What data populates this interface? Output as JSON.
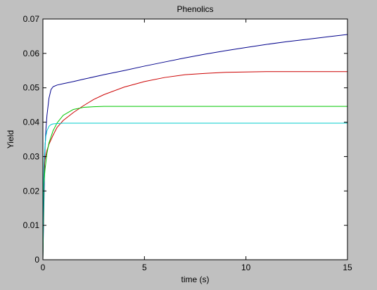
{
  "chart_data": {
    "type": "line",
    "title": "Phenolics",
    "xlabel": "time (s)",
    "ylabel": "Yield",
    "xlim": [
      0,
      15
    ],
    "ylim": [
      0,
      0.07
    ],
    "xticks": [
      0,
      5,
      10,
      15
    ],
    "xtick_labels": [
      "0",
      "5",
      "10",
      "15"
    ],
    "yticks": [
      0,
      0.01,
      0.02,
      0.03,
      0.04,
      0.05,
      0.06,
      0.07
    ],
    "ytick_labels": [
      "0",
      "0.01",
      "0.02",
      "0.03",
      "0.04",
      "0.05",
      "0.06",
      "0.07"
    ],
    "grid": false,
    "colors": {
      "figure_bg": "#c0c0c0",
      "axes_bg": "#ffffff",
      "series": [
        "#00008b",
        "#cc0000",
        "#00c800",
        "#00cccc"
      ]
    },
    "series": [
      {
        "color": "#00008b",
        "x": [
          0,
          0.05,
          0.1,
          0.15,
          0.2,
          0.3,
          0.4,
          0.5,
          0.7,
          1,
          1.5,
          2,
          3,
          4,
          5,
          6,
          7,
          8,
          9,
          10,
          11,
          12,
          13,
          14,
          15
        ],
        "y": [
          0,
          0.016,
          0.032,
          0.038,
          0.042,
          0.047,
          0.0495,
          0.0503,
          0.0508,
          0.0512,
          0.0518,
          0.0525,
          0.0538,
          0.055,
          0.0563,
          0.0575,
          0.0587,
          0.0598,
          0.0608,
          0.0617,
          0.0626,
          0.0634,
          0.0641,
          0.0648,
          0.0655
        ]
      },
      {
        "color": "#cc0000",
        "x": [
          0,
          0.05,
          0.1,
          0.2,
          0.3,
          0.5,
          0.7,
          1,
          1.5,
          2,
          2.5,
          3,
          4,
          5,
          6,
          7,
          8,
          9,
          10,
          11,
          12,
          13,
          14,
          15
        ],
        "y": [
          0,
          0.025,
          0.029,
          0.0318,
          0.0336,
          0.0362,
          0.0385,
          0.0405,
          0.0428,
          0.0448,
          0.0466,
          0.048,
          0.0502,
          0.0518,
          0.053,
          0.0538,
          0.0542,
          0.0545,
          0.0546,
          0.0547,
          0.0547,
          0.0547,
          0.0547,
          0.0547
        ]
      },
      {
        "color": "#00c800",
        "x": [
          0,
          0.05,
          0.1,
          0.2,
          0.3,
          0.5,
          0.7,
          1,
          1.5,
          2,
          2.5,
          3,
          4,
          5,
          6,
          7,
          8,
          9,
          10,
          11,
          12,
          13,
          14,
          15
        ],
        "y": [
          0,
          0.022,
          0.026,
          0.031,
          0.034,
          0.0375,
          0.0398,
          0.042,
          0.0437,
          0.0443,
          0.0445,
          0.0446,
          0.0446,
          0.0446,
          0.0446,
          0.0446,
          0.0446,
          0.0446,
          0.0446,
          0.0446,
          0.0446,
          0.0446,
          0.0446,
          0.0446
        ]
      },
      {
        "color": "#00cccc",
        "x": [
          0,
          0.03,
          0.05,
          0.1,
          0.15,
          0.2,
          0.3,
          0.4,
          0.5,
          0.7,
          1,
          1.5,
          2,
          3,
          5,
          8,
          10,
          12,
          15
        ],
        "y": [
          0,
          0.02,
          0.027,
          0.033,
          0.036,
          0.0375,
          0.0388,
          0.0393,
          0.0395,
          0.0396,
          0.0397,
          0.0397,
          0.0397,
          0.0397,
          0.0397,
          0.0397,
          0.0397,
          0.0397,
          0.0397
        ]
      }
    ]
  }
}
